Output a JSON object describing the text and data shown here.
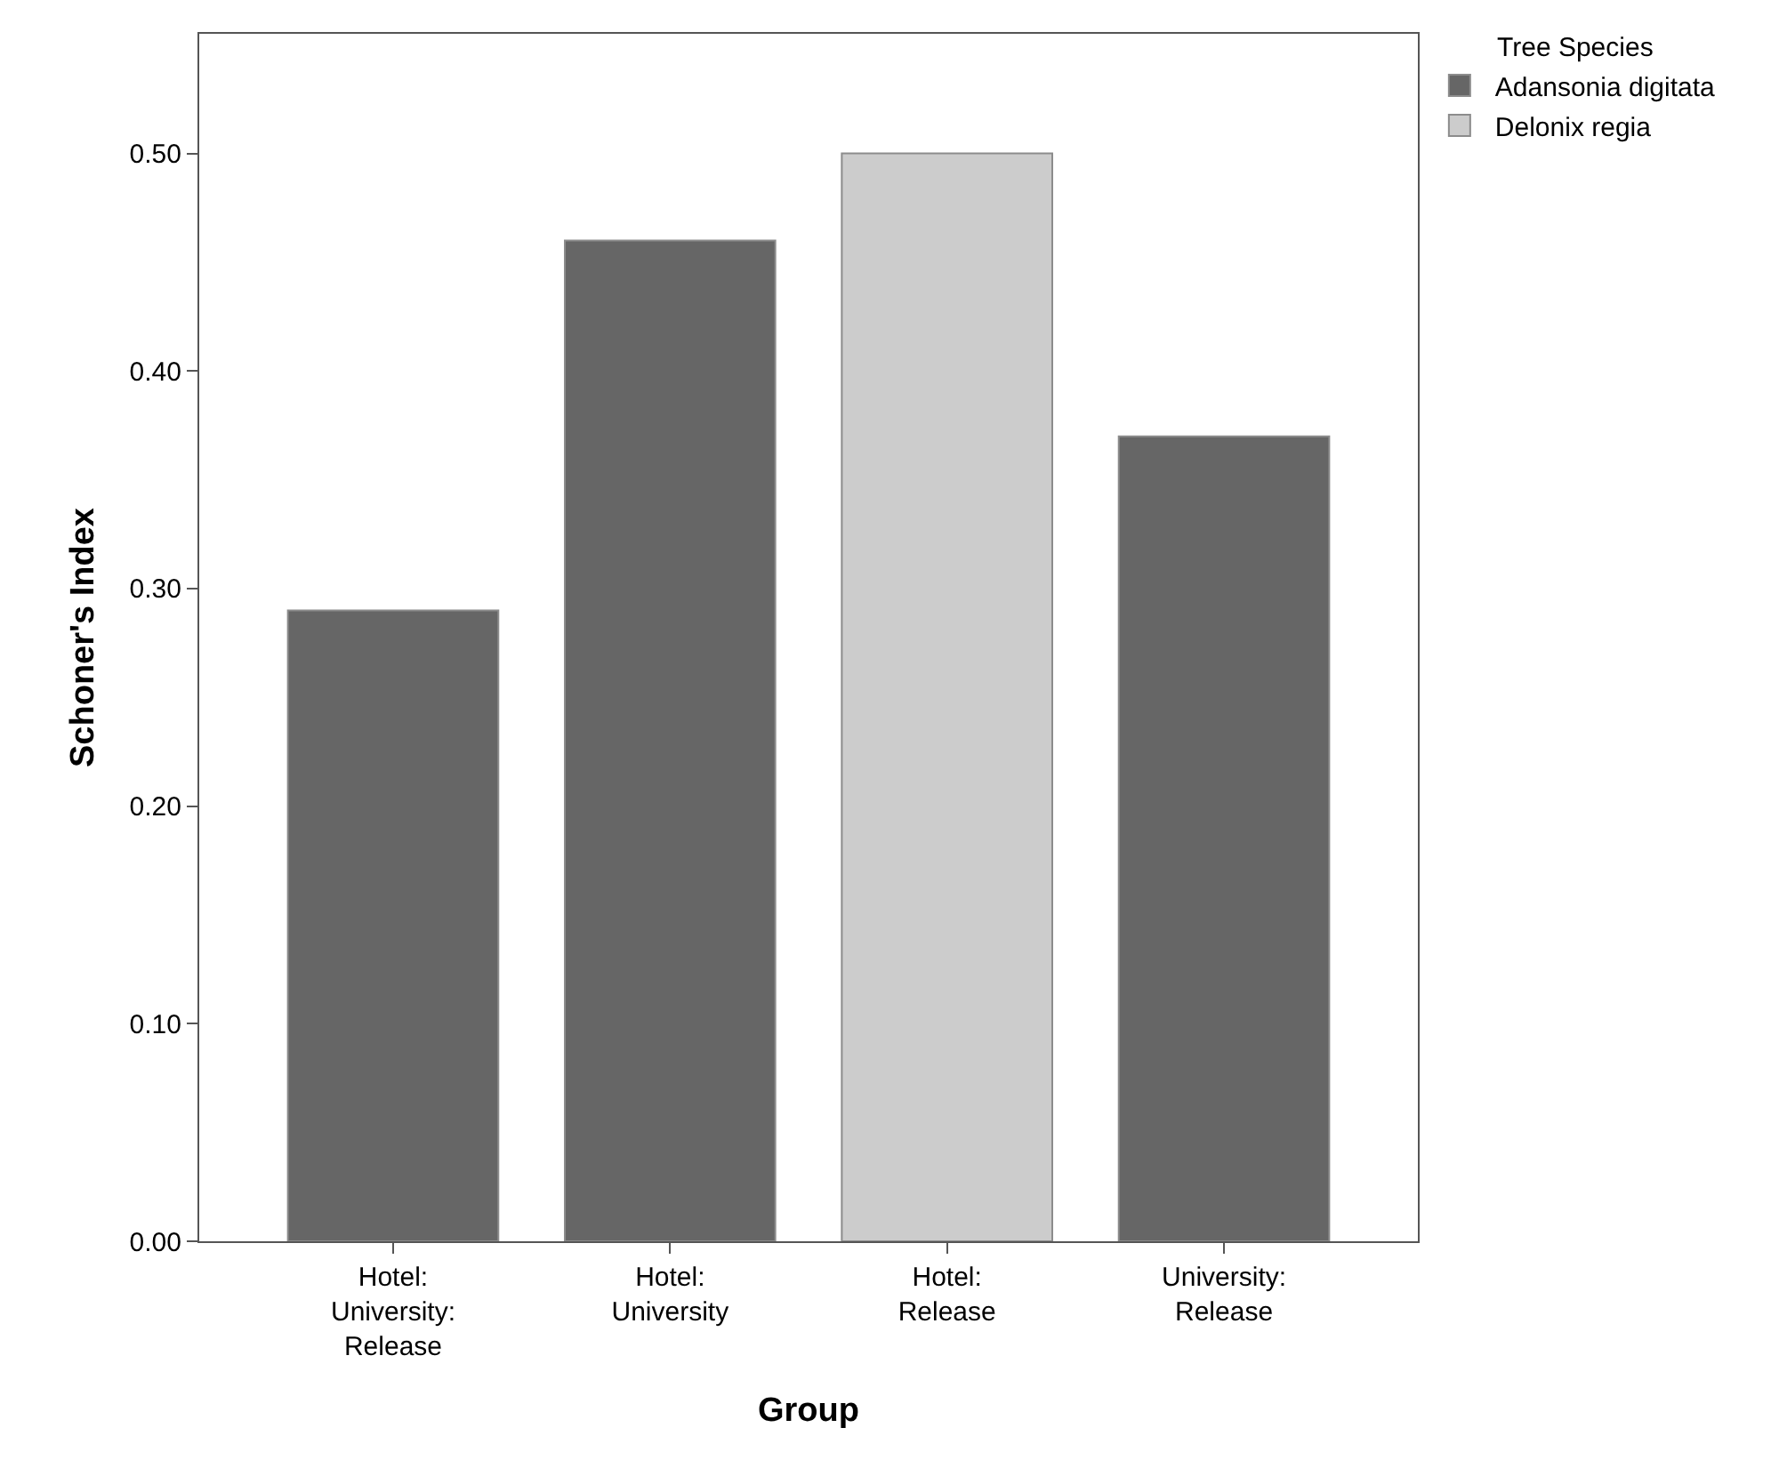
{
  "chart_data": {
    "type": "bar",
    "xlabel": "Group",
    "ylabel": "Schoner's Index",
    "legend_title": "Tree Species",
    "categories": [
      "Hotel: University: Release",
      "Hotel: University",
      "Hotel: Release",
      "University: Release"
    ],
    "series": [
      {
        "name": "Adansonia digitata",
        "color": "#666666",
        "values": [
          0.29,
          0.46,
          null,
          0.37
        ]
      },
      {
        "name": "Delonix regia",
        "color": "#cccccc",
        "values": [
          null,
          null,
          0.5,
          null
        ]
      }
    ],
    "ylim": [
      0,
      0.555
    ],
    "yticks": [
      {
        "value": 0,
        "label": "0.00"
      },
      {
        "value": 0.1,
        "label": "0.10"
      },
      {
        "value": 0.2,
        "label": "0.20"
      },
      {
        "value": 0.3,
        "label": "0.30"
      },
      {
        "value": 0.4,
        "label": "0.40"
      },
      {
        "value": 0.5,
        "label": "0.50"
      }
    ],
    "grid": false,
    "legend": "top right"
  }
}
